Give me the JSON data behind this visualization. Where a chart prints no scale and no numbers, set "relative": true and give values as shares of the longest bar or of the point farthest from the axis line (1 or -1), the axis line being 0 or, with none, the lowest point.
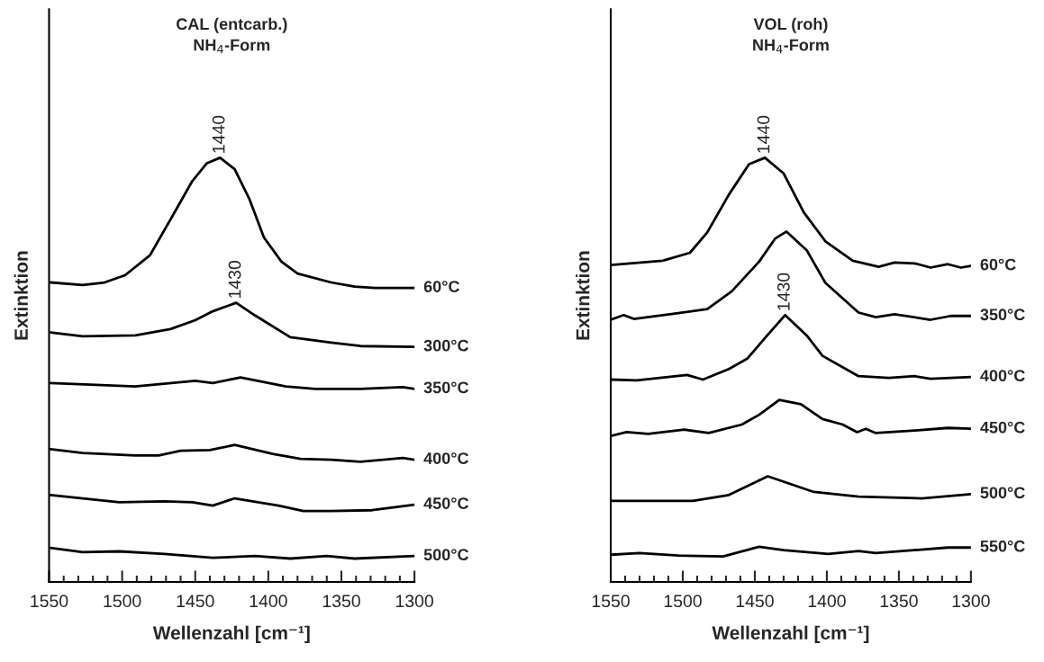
{
  "chart_data": [
    {
      "type": "line",
      "title": "CAL (entcarb.)\nNH$_{4}$-Form",
      "xlabel": "Wellenzahl [cm⁻¹]",
      "ylabel": "Extinktion",
      "relative": true,
      "xlim": [
        1550,
        1300
      ],
      "xticks": [
        1550,
        1500,
        1450,
        1400,
        1350,
        1300
      ],
      "grid": false,
      "legend": false,
      "annotations": [
        {
          "text": "1440",
          "x": 1433,
          "y": 1.0
        },
        {
          "text": "1430",
          "x": 1422,
          "y": 0.658
        }
      ],
      "series": [
        {
          "name": "60°C",
          "color": "#000000",
          "x": [
            1549,
            1527,
            1512,
            1498,
            1481,
            1467,
            1452,
            1442,
            1433,
            1423,
            1413,
            1403,
            1391,
            1380,
            1357,
            1341,
            1327,
            1300
          ],
          "values": [
            0.706,
            0.7,
            0.706,
            0.723,
            0.77,
            0.854,
            0.945,
            0.987,
            1.0,
            0.973,
            0.903,
            0.812,
            0.755,
            0.727,
            0.706,
            0.696,
            0.693,
            0.693
          ]
        },
        {
          "name": "300°C",
          "color": "#000000",
          "x": [
            1549,
            1527,
            1491,
            1467,
            1450,
            1438,
            1422,
            1409,
            1385,
            1357,
            1337,
            1300
          ],
          "values": [
            0.588,
            0.579,
            0.581,
            0.596,
            0.617,
            0.638,
            0.658,
            0.628,
            0.577,
            0.564,
            0.556,
            0.554
          ]
        },
        {
          "name": "350°C",
          "color": "#000000",
          "x": [
            1549,
            1491,
            1450,
            1438,
            1419,
            1388,
            1368,
            1337,
            1308,
            1300
          ],
          "values": [
            0.469,
            0.461,
            0.474,
            0.469,
            0.482,
            0.461,
            0.455,
            0.455,
            0.459,
            0.455
          ]
        },
        {
          "name": "400°C",
          "color": "#000000",
          "x": [
            1549,
            1527,
            1491,
            1475,
            1460,
            1440,
            1423,
            1397,
            1378,
            1357,
            1337,
            1308,
            1300
          ],
          "values": [
            0.313,
            0.304,
            0.298,
            0.298,
            0.309,
            0.311,
            0.323,
            0.302,
            0.29,
            0.288,
            0.283,
            0.292,
            0.288
          ]
        },
        {
          "name": "450°C",
          "color": "#000000",
          "x": [
            1549,
            1527,
            1502,
            1471,
            1452,
            1438,
            1423,
            1393,
            1376,
            1357,
            1329,
            1300
          ],
          "values": [
            0.205,
            0.197,
            0.188,
            0.19,
            0.188,
            0.18,
            0.197,
            0.18,
            0.167,
            0.167,
            0.169,
            0.182
          ]
        },
        {
          "name": "500°C",
          "color": "#000000",
          "x": [
            1549,
            1527,
            1502,
            1471,
            1438,
            1409,
            1385,
            1360,
            1341,
            1300
          ],
          "values": [
            0.08,
            0.07,
            0.072,
            0.066,
            0.057,
            0.061,
            0.055,
            0.061,
            0.055,
            0.061
          ]
        }
      ]
    },
    {
      "type": "line",
      "title": "VOL (roh)\nNH$_{4}$-Form",
      "xlabel": "Wellenzahl [cm⁻¹]",
      "ylabel": "Extinktion",
      "relative": true,
      "xlim": [
        1550,
        1300
      ],
      "xticks": [
        1550,
        1500,
        1450,
        1400,
        1350,
        1300
      ],
      "grid": false,
      "legend": false,
      "annotations": [
        {
          "text": "1440",
          "x": 1443,
          "y": 1.0
        },
        {
          "text": "1430",
          "x": 1429,
          "y": 0.629
        }
      ],
      "series": [
        {
          "name": "60°C",
          "color": "#000000",
          "x": [
            1550,
            1514,
            1495,
            1483,
            1468,
            1454,
            1443,
            1430,
            1416,
            1401,
            1382,
            1364,
            1353,
            1339,
            1328,
            1316,
            1307,
            1300
          ],
          "values": [
            0.747,
            0.757,
            0.776,
            0.824,
            0.913,
            0.985,
            1.0,
            0.963,
            0.871,
            0.803,
            0.757,
            0.743,
            0.753,
            0.751,
            0.741,
            0.749,
            0.741,
            0.745
          ]
        },
        {
          "name": "350°C",
          "color": "#000000",
          "x": [
            1550,
            1541,
            1534,
            1509,
            1483,
            1466,
            1447,
            1436,
            1428,
            1414,
            1401,
            1378,
            1366,
            1353,
            1328,
            1314,
            1300
          ],
          "values": [
            0.618,
            0.629,
            0.62,
            0.631,
            0.643,
            0.685,
            0.755,
            0.809,
            0.826,
            0.782,
            0.705,
            0.635,
            0.624,
            0.631,
            0.618,
            0.627,
            0.627
          ]
        },
        {
          "name": "400°C",
          "color": "#000000",
          "x": [
            1550,
            1532,
            1497,
            1486,
            1468,
            1455,
            1443,
            1429,
            1414,
            1403,
            1378,
            1357,
            1339,
            1328,
            1300
          ],
          "values": [
            0.477,
            0.475,
            0.488,
            0.477,
            0.502,
            0.527,
            0.575,
            0.629,
            0.581,
            0.533,
            0.485,
            0.481,
            0.485,
            0.479,
            0.483
          ]
        },
        {
          "name": "450°C",
          "color": "#000000",
          "x": [
            1550,
            1539,
            1524,
            1499,
            1482,
            1459,
            1447,
            1433,
            1418,
            1403,
            1389,
            1379,
            1373,
            1366,
            1339,
            1316,
            1300
          ],
          "values": [
            0.344,
            0.353,
            0.349,
            0.359,
            0.351,
            0.371,
            0.394,
            0.429,
            0.419,
            0.384,
            0.371,
            0.353,
            0.361,
            0.351,
            0.357,
            0.363,
            0.361
          ]
        },
        {
          "name": "500°C",
          "color": "#000000",
          "x": [
            1550,
            1493,
            1468,
            1441,
            1409,
            1378,
            1334,
            1300
          ],
          "values": [
            0.191,
            0.191,
            0.205,
            0.249,
            0.212,
            0.201,
            0.197,
            0.207
          ]
        },
        {
          "name": "550°C",
          "color": "#000000",
          "x": [
            1550,
            1530,
            1503,
            1472,
            1447,
            1430,
            1399,
            1378,
            1366,
            1316,
            1300
          ],
          "values": [
            0.064,
            0.068,
            0.062,
            0.06,
            0.083,
            0.075,
            0.066,
            0.073,
            0.068,
            0.081,
            0.081
          ]
        }
      ]
    }
  ]
}
